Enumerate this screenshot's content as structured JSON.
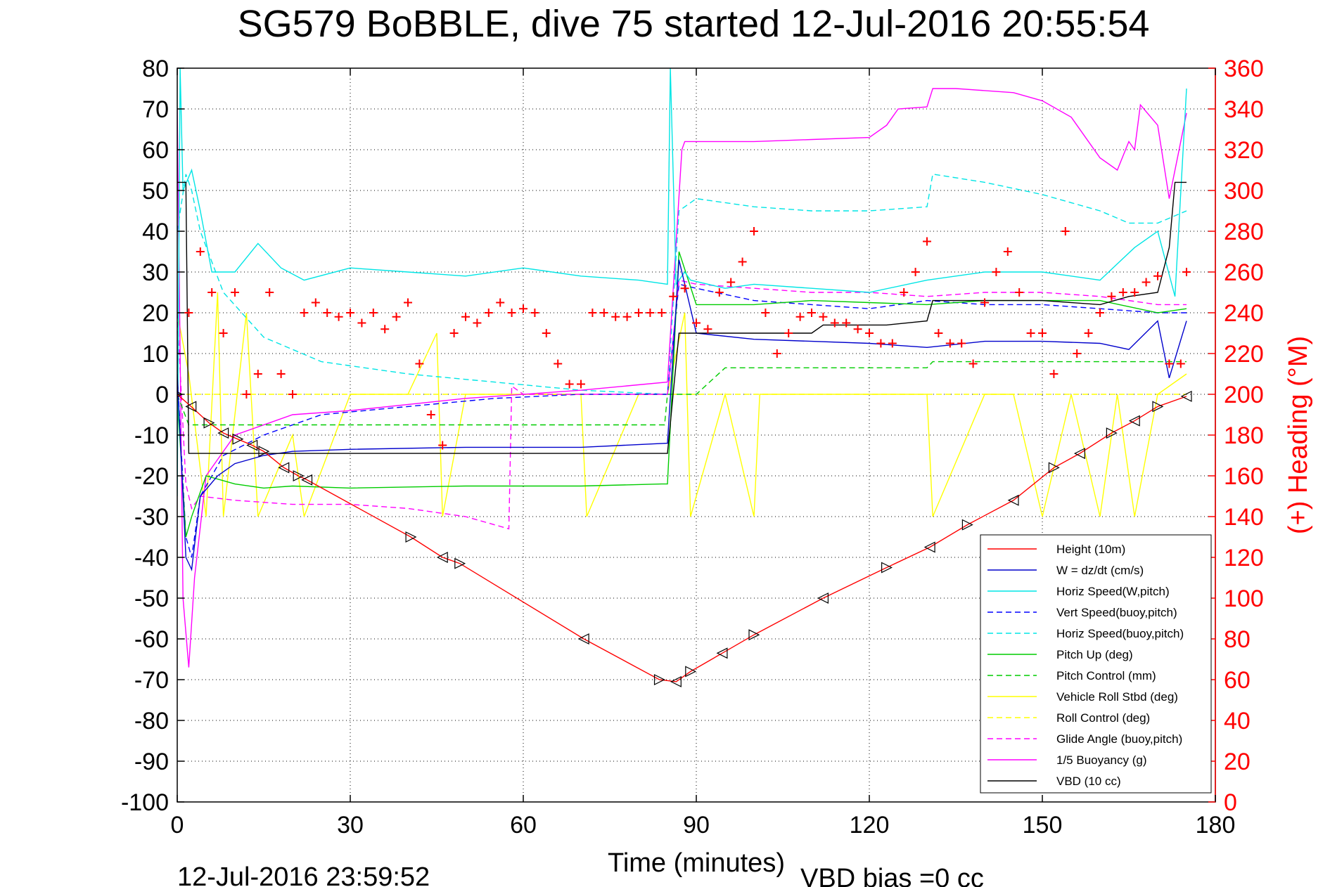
{
  "chart_data": {
    "type": "line",
    "title": "SG579 BoBBLE, dive 75 started 12-Jul-2016 20:55:54",
    "xlabel": "Time (minutes)",
    "ylabel_right": "(+) Heading (°M)",
    "xlim": [
      0,
      180
    ],
    "ylim": [
      -100,
      80
    ],
    "ylim_right": [
      0,
      360
    ],
    "x_ticks": [
      "0",
      "30",
      "60",
      "90",
      "120",
      "150",
      "180"
    ],
    "y_ticks": [
      "80",
      "70",
      "60",
      "50",
      "40",
      "30",
      "20",
      "10",
      "0",
      "-10",
      "-20",
      "-30",
      "-40",
      "-50",
      "-60",
      "-70",
      "-80",
      "-90",
      "-100"
    ],
    "y_ticks_right": [
      "360",
      "340",
      "320",
      "300",
      "280",
      "260",
      "240",
      "220",
      "200",
      "180",
      "160",
      "140",
      "120",
      "100",
      "80",
      "60",
      "40",
      "20",
      "0"
    ],
    "grid": true,
    "legend_position": "lower-right",
    "series": [
      {
        "name": "Height (10m)",
        "color": "#ff0000",
        "style": "solid",
        "markers": "triangle",
        "x": [
          0,
          2.4,
          5.5,
          8,
          10.5,
          13,
          15,
          18.5,
          21,
          22.5,
          40.5,
          46,
          49,
          70.5,
          83.6,
          86.5,
          89,
          94.5,
          100,
          112,
          123,
          130.5,
          137,
          145,
          152,
          156.5,
          162,
          166,
          170,
          175
        ],
        "y": [
          0,
          -3,
          -7,
          -9.5,
          -11,
          -12.5,
          -14,
          -18,
          -20,
          -21,
          -35,
          -40,
          -41.5,
          -60,
          -70,
          -70.5,
          -68,
          -63.5,
          -59,
          -50,
          -42.5,
          -37.5,
          -32,
          -26,
          -18,
          -14.5,
          -9.5,
          -6.5,
          -3,
          -0.5
        ]
      },
      {
        "name": "W = dz/dt (cm/s)",
        "color": "#0000cc",
        "style": "solid",
        "x": [
          0,
          1.5,
          2.5,
          4,
          7,
          10,
          15,
          20,
          30,
          50,
          70,
          85,
          87,
          90,
          100,
          110,
          120,
          130,
          140,
          150,
          160,
          165,
          170,
          172,
          175
        ],
        "y": [
          5,
          -40,
          -43,
          -25,
          -20,
          -17,
          -15,
          -14,
          -13.5,
          -13,
          -13,
          -12,
          33,
          15,
          13.5,
          13,
          12.5,
          11.5,
          13,
          13,
          12.5,
          11,
          18,
          4,
          18
        ]
      },
      {
        "name": "Horiz Speed(W,pitch)",
        "color": "#00e5e5",
        "style": "solid",
        "x": [
          0,
          0.5,
          1,
          2.5,
          4,
          6,
          10,
          14,
          18,
          22,
          30,
          40,
          50,
          60,
          70,
          80,
          85,
          85.5,
          86.5,
          88,
          89,
          95,
          100,
          110,
          120,
          130,
          140,
          150,
          160,
          163,
          166,
          170,
          173,
          175
        ],
        "y": [
          -25,
          80,
          50,
          55,
          45,
          30,
          30,
          37,
          31,
          28,
          31,
          30,
          29,
          31,
          29,
          28,
          27,
          80,
          27,
          30,
          28,
          26,
          27,
          26,
          25,
          28,
          30,
          30,
          28,
          32,
          36,
          40,
          24,
          75
        ]
      },
      {
        "name": "Vert Speed(buoy,pitch)",
        "color": "#0000ff",
        "style": "dashed",
        "x": [
          0,
          1.5,
          2.5,
          4,
          8,
          15,
          25,
          40,
          55,
          70,
          85,
          87,
          90,
          100,
          110,
          120,
          130,
          140,
          150,
          160,
          170,
          175
        ],
        "y": [
          5,
          -35,
          -40,
          -25,
          -15,
          -10,
          -5,
          -3,
          -1,
          0,
          0,
          27,
          26,
          23,
          22,
          21,
          23,
          22,
          22,
          21,
          20,
          20
        ]
      },
      {
        "name": "Horiz Speed(buoy,pitch)",
        "color": "#00e5e5",
        "style": "dashed",
        "x": [
          0,
          1.5,
          2.5,
          4,
          8,
          15,
          25,
          40,
          55,
          70,
          85,
          87,
          90,
          100,
          110,
          120,
          130,
          131,
          140,
          150,
          160,
          165,
          170,
          175
        ],
        "y": [
          40,
          54,
          50,
          40,
          25,
          14,
          8,
          5,
          3,
          1,
          0,
          45,
          48,
          46,
          45,
          45,
          46,
          54,
          52,
          49,
          45,
          42,
          42,
          45
        ]
      },
      {
        "name": "Pitch Up (deg)",
        "color": "#00cc00",
        "style": "solid",
        "x": [
          0,
          1.5,
          2.5,
          5,
          10,
          15,
          20,
          30,
          50,
          70,
          84,
          85,
          87,
          90,
          100,
          110,
          120,
          130,
          140,
          150,
          160,
          170,
          175
        ],
        "y": [
          0,
          -35,
          -30,
          -20,
          -22,
          -23,
          -22.5,
          -23,
          -22.5,
          -22.5,
          -22,
          -22,
          35,
          22,
          22,
          23,
          22.5,
          22,
          23,
          23,
          23,
          20,
          21
        ]
      },
      {
        "name": "Pitch Control (mm)",
        "color": "#00cc00",
        "style": "dashed",
        "x": [
          0,
          2,
          10,
          84.5,
          85,
          90,
          95,
          123,
          130,
          131,
          175
        ],
        "y": [
          0,
          -7.5,
          -7.5,
          -7.5,
          0,
          0,
          6.5,
          6.5,
          6.5,
          8,
          8
        ]
      },
      {
        "name": "Vehicle Roll Stbd (deg)",
        "color": "#ffff00",
        "style": "solid",
        "x": [
          0,
          2,
          5,
          7,
          8,
          12,
          14,
          20,
          22,
          30,
          40,
          45,
          46,
          50,
          60,
          70,
          71,
          80,
          85,
          88,
          89,
          95,
          100,
          101,
          105,
          110,
          120,
          130,
          131,
          140,
          145,
          150,
          155,
          160,
          163,
          166,
          170,
          175
        ],
        "y": [
          20,
          5,
          -30,
          25,
          -30,
          20,
          -30,
          -10,
          -30,
          0,
          0,
          15,
          -30,
          0,
          0,
          0,
          -30,
          0,
          0,
          20,
          -30,
          0,
          -30,
          0,
          0,
          0,
          0,
          0,
          -30,
          0,
          0,
          -30,
          0,
          -30,
          0,
          -30,
          0,
          5
        ]
      },
      {
        "name": "Roll Control (deg)",
        "color": "#ffff00",
        "style": "dashed",
        "x": [
          0,
          2,
          10,
          20,
          40,
          60,
          85,
          86,
          95,
          110,
          125,
          140,
          160,
          175
        ],
        "y": [
          0,
          0,
          0,
          0,
          0,
          0,
          0,
          0,
          0,
          0,
          0,
          0,
          0,
          0
        ]
      },
      {
        "name": "Glide Angle (buoy,pitch)",
        "color": "#ff00ff",
        "style": "dashed",
        "x": [
          0,
          1.5,
          2.5,
          4,
          10,
          15,
          20,
          30,
          40,
          50,
          57.5,
          58,
          60,
          85,
          87,
          90,
          100,
          110,
          120,
          130,
          140,
          150,
          160,
          170,
          175
        ],
        "y": [
          20,
          -22,
          -28,
          -25,
          -26,
          -26.5,
          -27,
          -27,
          -28,
          -30,
          -33,
          2,
          0,
          0,
          28,
          27,
          26,
          25,
          25,
          24,
          25,
          25,
          24,
          22,
          22
        ]
      },
      {
        "name": "1/5 Buoyancy (g)",
        "color": "#ff00ff",
        "style": "solid",
        "x": [
          0,
          1,
          2,
          3,
          5,
          10,
          20,
          30,
          50,
          70,
          85,
          87.5,
          88,
          100,
          110,
          120,
          123,
          125,
          130,
          131,
          135,
          145,
          150,
          155,
          160,
          163,
          165,
          166,
          167,
          170,
          172,
          175
        ],
        "y": [
          70,
          -50,
          -67,
          -45,
          -20,
          -10,
          -5,
          -4,
          -1,
          1,
          3,
          60,
          62,
          62,
          62.5,
          63,
          66,
          70,
          70.5,
          75,
          75,
          74,
          72,
          68,
          58,
          55,
          62,
          60,
          71,
          66,
          48,
          69
        ]
      },
      {
        "name": "VBD (10 cc)",
        "color": "#000000",
        "style": "solid",
        "x": [
          0,
          1.5,
          2,
          10,
          80,
          85,
          87,
          88,
          89,
          95,
          100,
          110,
          112,
          120,
          123,
          130,
          131,
          135,
          140,
          150,
          160,
          165,
          170,
          172,
          173,
          175
        ],
        "y": [
          52,
          52,
          -14.5,
          -14.5,
          -14.5,
          -14.5,
          15,
          15,
          15,
          15,
          15,
          15,
          17,
          17,
          17,
          18,
          23,
          23,
          23,
          23,
          22,
          24,
          25,
          36,
          52,
          52
        ]
      },
      {
        "name": "Heading",
        "axis": "right",
        "color": "#ff0000",
        "style": "plus",
        "x": [
          2,
          4,
          6,
          8,
          10,
          12,
          14,
          16,
          18,
          20,
          22,
          24,
          26,
          28,
          30,
          32,
          34,
          36,
          38,
          40,
          42,
          44,
          46,
          48,
          50,
          52,
          54,
          56,
          58,
          60,
          62,
          64,
          66,
          68,
          70,
          72,
          74,
          76,
          78,
          80,
          82,
          84,
          86,
          88,
          90,
          92,
          94,
          96,
          98,
          100,
          102,
          104,
          106,
          108,
          110,
          112,
          114,
          116,
          118,
          120,
          122,
          124,
          126,
          128,
          130,
          132,
          134,
          136,
          138,
          140,
          142,
          144,
          146,
          148,
          150,
          152,
          154,
          156,
          158,
          160,
          162,
          164,
          166,
          168,
          170,
          172,
          174,
          175
        ],
        "y": [
          240,
          270,
          250,
          230,
          250,
          200,
          210,
          250,
          210,
          200,
          240,
          245,
          240,
          238,
          240,
          235,
          240,
          232,
          238,
          245,
          215,
          190,
          175,
          230,
          238,
          235,
          240,
          245,
          240,
          242,
          240,
          230,
          215,
          205,
          205,
          240,
          240,
          238,
          238,
          240,
          240,
          240,
          248,
          252,
          235,
          232,
          250,
          255,
          265,
          280,
          240,
          220,
          230,
          238,
          240,
          238,
          235,
          235,
          232,
          230,
          225,
          225,
          250,
          260,
          275,
          230,
          225,
          225,
          215,
          245,
          260,
          270,
          250,
          230,
          230,
          210,
          280,
          220,
          230,
          240,
          248,
          250,
          250,
          255,
          258,
          215,
          215,
          260
        ]
      }
    ],
    "legend": [
      "Height (10m)",
      "W = dz/dt (cm/s)",
      "Horiz Speed(W,pitch)",
      "Vert Speed(buoy,pitch)",
      "Horiz Speed(buoy,pitch)",
      "Pitch Up (deg)",
      "Pitch Control (mm)",
      "Vehicle Roll Stbd (deg)",
      "Roll Control (deg)",
      "Glide Angle (buoy,pitch)",
      "1/5 Buoyancy (g)",
      "VBD (10 cc)"
    ],
    "annotations": [
      "12-Jul-2016 23:59:52",
      "VBD bias =0 cc"
    ]
  }
}
